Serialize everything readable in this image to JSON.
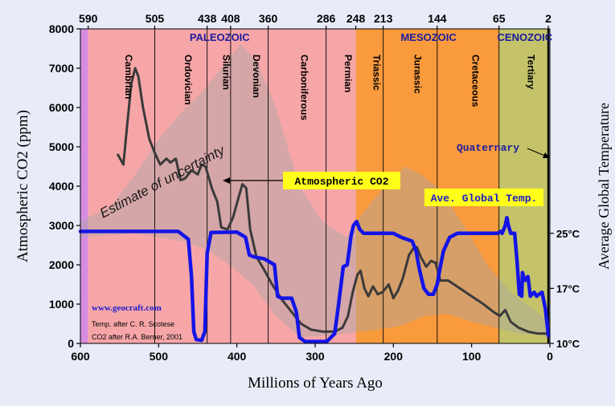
{
  "chart_data": {
    "type": "line",
    "xlabel": "Millions of Years Ago",
    "ylabel": "Atmospheric CO2 (ppm)",
    "y2label": "Average Global Temperature",
    "xlim": [
      600,
      0
    ],
    "ylim": [
      0,
      8000
    ],
    "x_ticks": [
      600,
      500,
      400,
      300,
      200,
      100,
      0
    ],
    "y_ticks": [
      0,
      1000,
      2000,
      3000,
      4000,
      5000,
      6000,
      7000,
      8000
    ],
    "y2_ticks": [
      {
        "label": "25°C",
        "at_co2_equivalent": 2800
      },
      {
        "label": "17°C",
        "at_co2_equivalent": 1400
      },
      {
        "label": "10°C",
        "at_co2_equivalent": 0
      }
    ],
    "top_ticks": [
      {
        "label": "590",
        "x": 590
      },
      {
        "label": "505",
        "x": 505
      },
      {
        "label": "438",
        "x": 438
      },
      {
        "label": "408",
        "x": 408
      },
      {
        "label": "360",
        "x": 360
      },
      {
        "label": "286",
        "x": 286
      },
      {
        "label": "248",
        "x": 248
      },
      {
        "label": "213",
        "x": 213
      },
      {
        "label": "144",
        "x": 144
      },
      {
        "label": "65",
        "x": 65
      },
      {
        "label": "2",
        "x": 2
      }
    ],
    "eras": [
      {
        "label": "PALEOZOIC",
        "from": 590,
        "to": 248,
        "color": "#f7a6a8",
        "at_x": 422
      },
      {
        "label": "MESOZOIC",
        "from": 248,
        "to": 65,
        "color": "#f99a3d",
        "at_x": 155
      },
      {
        "label": "CENOZOIC",
        "from": 65,
        "to": 2,
        "color": "#c4c36a",
        "at_x": 32
      }
    ],
    "precambrian_color": "#d88ce0",
    "periods": [
      {
        "label": "Cambrian",
        "from": 590,
        "to": 505
      },
      {
        "label": "Ordovician",
        "from": 505,
        "to": 438
      },
      {
        "label": "Silurian",
        "from": 438,
        "to": 408
      },
      {
        "label": "Devonian",
        "from": 408,
        "to": 360
      },
      {
        "label": "Carboniferous",
        "from": 360,
        "to": 286
      },
      {
        "label": "Permian",
        "from": 286,
        "to": 248
      },
      {
        "label": "Triassic",
        "from": 248,
        "to": 213
      },
      {
        "label": "Jurassic",
        "from": 213,
        "to": 144
      },
      {
        "label": "Cretaceous",
        "from": 144,
        "to": 65
      },
      {
        "label": "Tertiary",
        "from": 65,
        "to": 2
      }
    ],
    "quaternary_label": "Quaternary",
    "series": [
      {
        "name": "Atmospheric CO2",
        "color": "#3a3a3a",
        "points": [
          [
            552,
            4800
          ],
          [
            545,
            4550
          ],
          [
            540,
            5600
          ],
          [
            535,
            6600
          ],
          [
            530,
            7000
          ],
          [
            526,
            6800
          ],
          [
            520,
            6000
          ],
          [
            512,
            5200
          ],
          [
            505,
            4850
          ],
          [
            498,
            4550
          ],
          [
            490,
            4700
          ],
          [
            485,
            4600
          ],
          [
            478,
            4700
          ],
          [
            472,
            4150
          ],
          [
            466,
            4200
          ],
          [
            458,
            4400
          ],
          [
            450,
            4300
          ],
          [
            445,
            4550
          ],
          [
            440,
            4500
          ],
          [
            432,
            3950
          ],
          [
            425,
            3600
          ],
          [
            420,
            2950
          ],
          [
            412,
            2900
          ],
          [
            405,
            3200
          ],
          [
            398,
            3700
          ],
          [
            393,
            4050
          ],
          [
            388,
            3950
          ],
          [
            383,
            2900
          ],
          [
            375,
            2200
          ],
          [
            366,
            1900
          ],
          [
            355,
            1500
          ],
          [
            342,
            1100
          ],
          [
            330,
            800
          ],
          [
            318,
            500
          ],
          [
            305,
            350
          ],
          [
            290,
            300
          ],
          [
            275,
            300
          ],
          [
            265,
            400
          ],
          [
            258,
            700
          ],
          [
            252,
            1300
          ],
          [
            246,
            1750
          ],
          [
            242,
            1850
          ],
          [
            237,
            1400
          ],
          [
            232,
            1200
          ],
          [
            226,
            1450
          ],
          [
            220,
            1250
          ],
          [
            214,
            1300
          ],
          [
            206,
            1500
          ],
          [
            200,
            1150
          ],
          [
            194,
            1350
          ],
          [
            188,
            1650
          ],
          [
            180,
            2250
          ],
          [
            175,
            2400
          ],
          [
            170,
            2450
          ],
          [
            165,
            2200
          ],
          [
            158,
            1950
          ],
          [
            152,
            2100
          ],
          [
            146,
            2050
          ],
          [
            140,
            1600
          ],
          [
            130,
            1600
          ],
          [
            115,
            1400
          ],
          [
            100,
            1200
          ],
          [
            85,
            1000
          ],
          [
            72,
            800
          ],
          [
            64,
            700
          ],
          [
            57,
            850
          ],
          [
            50,
            550
          ],
          [
            40,
            400
          ],
          [
            28,
            300
          ],
          [
            15,
            250
          ],
          [
            2,
            250
          ]
        ]
      },
      {
        "name": "Ave. Global Temp.",
        "color": "#1414e6",
        "y_axis": "temperature, plotted on the CO2 scale",
        "points": [
          [
            600,
            2850
          ],
          [
            475,
            2850
          ],
          [
            462,
            2650
          ],
          [
            458,
            1700
          ],
          [
            455,
            300
          ],
          [
            452,
            100
          ],
          [
            445,
            80
          ],
          [
            441,
            300
          ],
          [
            438,
            2300
          ],
          [
            433,
            2820
          ],
          [
            400,
            2830
          ],
          [
            389,
            2700
          ],
          [
            384,
            2250
          ],
          [
            378,
            2200
          ],
          [
            365,
            2150
          ],
          [
            352,
            2000
          ],
          [
            348,
            1200
          ],
          [
            343,
            1150
          ],
          [
            330,
            1150
          ],
          [
            324,
            800
          ],
          [
            320,
            150
          ],
          [
            313,
            50
          ],
          [
            285,
            50
          ],
          [
            275,
            250
          ],
          [
            270,
            1000
          ],
          [
            264,
            1950
          ],
          [
            259,
            2000
          ],
          [
            254,
            2750
          ],
          [
            251,
            3000
          ],
          [
            247,
            3100
          ],
          [
            243,
            2900
          ],
          [
            238,
            2800
          ],
          [
            200,
            2800
          ],
          [
            190,
            2700
          ],
          [
            176,
            2600
          ],
          [
            171,
            2350
          ],
          [
            167,
            1900
          ],
          [
            161,
            1400
          ],
          [
            155,
            1250
          ],
          [
            149,
            1250
          ],
          [
            144,
            1500
          ],
          [
            140,
            1950
          ],
          [
            136,
            2350
          ],
          [
            128,
            2700
          ],
          [
            118,
            2800
          ],
          [
            67,
            2800
          ],
          [
            63,
            2850
          ],
          [
            61,
            2800
          ],
          [
            57,
            3000
          ],
          [
            55,
            3200
          ],
          [
            53,
            3000
          ],
          [
            50,
            2800
          ],
          [
            45,
            2800
          ],
          [
            42,
            2100
          ],
          [
            39,
            1250
          ],
          [
            36,
            1200
          ],
          [
            35,
            1800
          ],
          [
            32,
            1600
          ],
          [
            28,
            1700
          ],
          [
            25,
            1200
          ],
          [
            20,
            1300
          ],
          [
            17,
            1200
          ],
          [
            14,
            1250
          ],
          [
            10,
            1300
          ],
          [
            6,
            900
          ],
          [
            3,
            400
          ],
          [
            2,
            200
          ]
        ]
      }
    ],
    "uncertainty_band": {
      "upper": [
        [
          600,
          3100
        ],
        [
          560,
          3500
        ],
        [
          530,
          4300
        ],
        [
          500,
          5200
        ],
        [
          470,
          5900
        ],
        [
          440,
          6500
        ],
        [
          420,
          7000
        ],
        [
          395,
          7600
        ],
        [
          375,
          7200
        ],
        [
          350,
          6000
        ],
        [
          320,
          4000
        ],
        [
          290,
          3100
        ],
        [
          260,
          2700
        ],
        [
          240,
          3300
        ],
        [
          215,
          3900
        ],
        [
          185,
          4500
        ],
        [
          165,
          4300
        ],
        [
          140,
          3900
        ],
        [
          110,
          3000
        ],
        [
          80,
          2000
        ],
        [
          50,
          1300
        ],
        [
          10,
          700
        ],
        [
          0,
          600
        ]
      ],
      "lower": [
        [
          0,
          200
        ],
        [
          40,
          250
        ],
        [
          70,
          400
        ],
        [
          100,
          550
        ],
        [
          130,
          750
        ],
        [
          160,
          700
        ],
        [
          190,
          450
        ],
        [
          220,
          350
        ],
        [
          250,
          280
        ],
        [
          280,
          200
        ],
        [
          320,
          160
        ],
        [
          350,
          700
        ],
        [
          380,
          1500
        ],
        [
          410,
          2000
        ],
        [
          440,
          2400
        ],
        [
          470,
          2600
        ],
        [
          500,
          2700
        ],
        [
          530,
          2800
        ],
        [
          560,
          2750
        ],
        [
          600,
          2700
        ]
      ]
    },
    "annotations": {
      "co2_label": "Atmospheric CO2",
      "temp_label": "Ave. Global Temp.",
      "uncertainty_label": "Estimate of uncertainty",
      "website": "www.geocraft.com",
      "credit_temp": "Temp. after C. R. Scotese",
      "credit_co2": "CO2 after R.A. Berner, 2001"
    }
  }
}
